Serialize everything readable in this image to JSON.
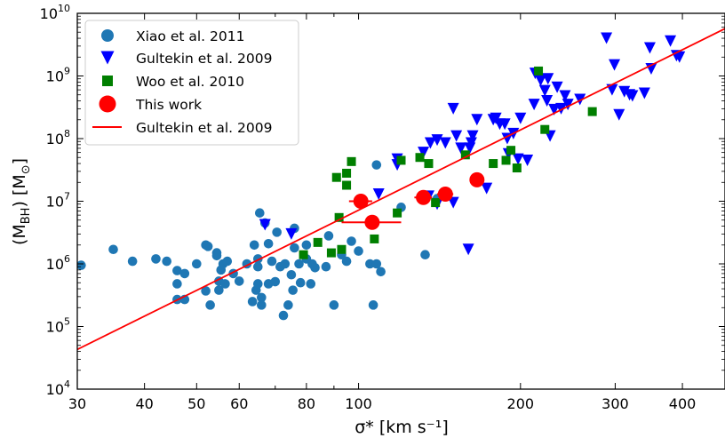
{
  "chart_data": {
    "type": "scatter",
    "title": "",
    "xlabel": "σ* [km s⁻¹]",
    "ylabel": "(M_BH) [M_⊙]",
    "x_scale": "log",
    "y_scale": "log",
    "xlim": [
      30,
      480
    ],
    "ylim": [
      10000,
      10000000000
    ],
    "x_ticks": [
      30,
      40,
      50,
      60,
      80,
      100,
      200,
      300,
      400
    ],
    "x_tick_labels": [
      "30",
      "40",
      "50",
      "60",
      "80",
      "100",
      "200",
      "300",
      "400"
    ],
    "y_ticks": [
      10000,
      100000,
      1000000,
      10000000,
      100000000,
      1000000000,
      10000000000
    ],
    "y_tick_labels": [
      [
        "10",
        "4"
      ],
      [
        "10",
        "5"
      ],
      [
        "10",
        "6"
      ],
      [
        "10",
        "7"
      ],
      [
        "10",
        "8"
      ],
      [
        "10",
        "9"
      ],
      [
        "10",
        "10"
      ]
    ],
    "grid": false,
    "legend_position": "top-left",
    "series": [
      {
        "name": "Xiao et al. 2011",
        "marker": "circle",
        "color": "#1f77b4",
        "points": [
          [
            30.5,
            950000
          ],
          [
            35,
            1700000
          ],
          [
            38,
            1100000
          ],
          [
            42,
            1200000
          ],
          [
            44,
            1100000
          ],
          [
            46,
            480000
          ],
          [
            46,
            780000
          ],
          [
            46,
            270000
          ],
          [
            47.5,
            700000
          ],
          [
            47.5,
            270000
          ],
          [
            50,
            1000000
          ],
          [
            52,
            2000000
          ],
          [
            52.5,
            1900000
          ],
          [
            52,
            370000
          ],
          [
            53,
            220000
          ],
          [
            54.5,
            1500000
          ],
          [
            54.5,
            1350000
          ],
          [
            55,
            530000
          ],
          [
            55,
            380000
          ],
          [
            55.5,
            800000
          ],
          [
            56,
            1000000
          ],
          [
            56.5,
            480000
          ],
          [
            57,
            1100000
          ],
          [
            58.5,
            700000
          ],
          [
            60,
            530000
          ],
          [
            62,
            1000000
          ],
          [
            63.5,
            250000
          ],
          [
            64,
            2000000
          ],
          [
            64.5,
            380000
          ],
          [
            65,
            480000
          ],
          [
            65,
            1200000
          ],
          [
            65,
            900000
          ],
          [
            66,
            220000
          ],
          [
            66,
            290000
          ],
          [
            65.5,
            6500000
          ],
          [
            67,
            4500000
          ],
          [
            68,
            480000
          ],
          [
            68,
            2100000
          ],
          [
            69,
            1100000
          ],
          [
            70,
            520000
          ],
          [
            70.5,
            3200000
          ],
          [
            71.5,
            900000
          ],
          [
            72.5,
            150000
          ],
          [
            73,
            1000000
          ],
          [
            74,
            220000
          ],
          [
            75,
            670000
          ],
          [
            76,
            3700000
          ],
          [
            75.5,
            380000
          ],
          [
            76,
            1800000
          ],
          [
            77.5,
            1000000
          ],
          [
            78,
            500000
          ],
          [
            80,
            2000000
          ],
          [
            80,
            1200000
          ],
          [
            81.5,
            480000
          ],
          [
            82,
            1000000
          ],
          [
            83,
            870000
          ],
          [
            87,
            900000
          ],
          [
            88,
            2800000
          ],
          [
            90,
            220000
          ],
          [
            93,
            1400000
          ],
          [
            95,
            1100000
          ],
          [
            97,
            2300000
          ],
          [
            100,
            1600000
          ],
          [
            105,
            1000000
          ],
          [
            106.5,
            220000
          ],
          [
            108,
            38000000
          ],
          [
            108,
            1000000
          ],
          [
            110,
            750000
          ],
          [
            120,
            8000000
          ],
          [
            133,
            1400000
          ],
          [
            140,
            11000000
          ]
        ]
      },
      {
        "name": "Gultekin et al. 2009",
        "marker": "triangle-down",
        "color": "#0000ff",
        "points": [
          [
            67,
            4200000
          ],
          [
            75,
            3000000
          ],
          [
            109,
            13000000
          ],
          [
            118,
            47000000
          ],
          [
            118,
            38000000
          ],
          [
            132,
            60000000
          ],
          [
            135,
            12000000
          ],
          [
            136,
            85000000
          ],
          [
            140,
            95000000
          ],
          [
            140,
            9000000
          ],
          [
            145,
            85000000
          ],
          [
            150,
            300000000
          ],
          [
            150,
            9500000
          ],
          [
            152,
            110000000
          ],
          [
            155,
            70000000
          ],
          [
            160,
            1700000
          ],
          [
            161,
            70000000
          ],
          [
            162,
            85000000
          ],
          [
            163,
            110000000
          ],
          [
            166,
            200000000
          ],
          [
            173,
            16000000
          ],
          [
            178,
            200000000
          ],
          [
            180,
            210000000
          ],
          [
            183,
            170000000
          ],
          [
            187,
            170000000
          ],
          [
            189,
            100000000
          ],
          [
            190,
            57000000
          ],
          [
            194,
            120000000
          ],
          [
            198,
            47000000
          ],
          [
            200,
            210000000
          ],
          [
            206,
            45000000
          ],
          [
            212,
            350000000
          ],
          [
            213,
            1100000000
          ],
          [
            218,
            850000000
          ],
          [
            222,
            580000000
          ],
          [
            224,
            400000000
          ],
          [
            225,
            900000000
          ],
          [
            227,
            110000000
          ],
          [
            231,
            290000000
          ],
          [
            234,
            660000000
          ],
          [
            238,
            300000000
          ],
          [
            242,
            480000000
          ],
          [
            245,
            350000000
          ],
          [
            258,
            420000000
          ],
          [
            289,
            4000000000
          ],
          [
            296,
            600000000
          ],
          [
            299,
            1500000000
          ],
          [
            305,
            240000000
          ],
          [
            312,
            560000000
          ],
          [
            319,
            500000000
          ],
          [
            323,
            480000000
          ],
          [
            340,
            530000000
          ],
          [
            348,
            2800000000
          ],
          [
            350,
            1300000000
          ],
          [
            380,
            3600000000
          ],
          [
            390,
            2100000000
          ],
          [
            395,
            2000000000
          ]
        ]
      },
      {
        "name": "Woo et al. 2010",
        "marker": "square",
        "color": "#007f00",
        "points": [
          [
            79,
            1400000
          ],
          [
            84,
            2200000
          ],
          [
            89,
            1500000
          ],
          [
            91,
            24000000
          ],
          [
            92,
            5500000
          ],
          [
            93,
            1700000
          ],
          [
            95,
            28000000
          ],
          [
            95,
            18000000
          ],
          [
            97,
            43000000
          ],
          [
            107,
            2500000
          ],
          [
            118,
            6500000
          ],
          [
            120,
            45000000
          ],
          [
            130,
            50000000
          ],
          [
            135,
            40000000
          ],
          [
            139,
            9500000
          ],
          [
            158,
            55000000
          ],
          [
            178,
            40000000
          ],
          [
            188,
            45000000
          ],
          [
            192,
            65000000
          ],
          [
            197,
            34000000
          ],
          [
            216,
            1200000000
          ],
          [
            222,
            140000000
          ],
          [
            272,
            270000000
          ]
        ]
      },
      {
        "name": "This work",
        "marker": "circle-large",
        "color": "#ff0000",
        "points": [
          [
            101,
            10000000
          ],
          [
            106,
            4600000
          ],
          [
            132,
            11500000
          ],
          [
            145,
            13000000
          ],
          [
            166,
            22000000
          ]
        ],
        "xerr": [
          [
            96,
            106
          ],
          [
            93,
            120
          ],
          [
            127,
            137
          ],
          [
            140,
            150
          ],
          [
            162,
            170
          ]
        ]
      },
      {
        "name": "Gultekin et al. 2009",
        "type": "line",
        "color": "#ff0000",
        "points": [
          [
            30,
            43000
          ],
          [
            480,
            5700000000
          ]
        ]
      }
    ]
  }
}
